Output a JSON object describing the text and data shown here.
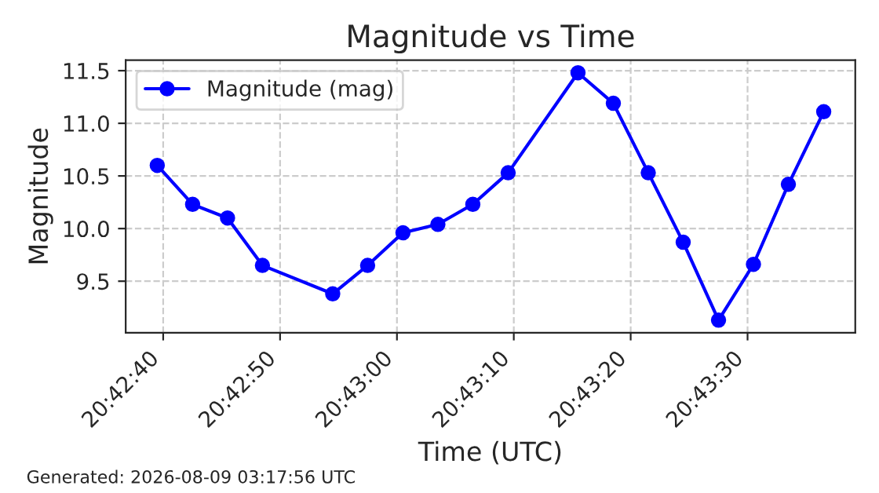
{
  "chart_data": {
    "type": "line",
    "title": "Magnitude vs Time",
    "xlabel": "Time (UTC)",
    "ylabel": "Magnitude",
    "x": [
      20.71097,
      20.71181,
      20.71264,
      20.71347,
      20.71514,
      20.71597,
      20.71681,
      20.71764,
      20.71847,
      20.71931,
      20.72097,
      20.72181,
      20.72264,
      20.72347,
      20.72431,
      20.72514,
      20.72597,
      20.72681
    ],
    "series": [
      {
        "name": "Magnitude (mag)",
        "color": "#0000ff",
        "values": [
          10.6,
          10.23,
          10.1,
          9.65,
          9.38,
          9.65,
          9.96,
          10.04,
          10.23,
          10.53,
          11.48,
          11.19,
          10.53,
          9.87,
          9.13,
          9.66,
          10.42,
          11.11
        ]
      }
    ],
    "xlim": [
      20.71022,
      20.72756
    ],
    "ylim": [
      9.01,
      11.6
    ],
    "xticks": [
      {
        "value": 20.711111,
        "label": "20:42:40"
      },
      {
        "value": 20.713889,
        "label": "20:42:50"
      },
      {
        "value": 20.716667,
        "label": "20:43:00"
      },
      {
        "value": 20.719444,
        "label": "20:43:10"
      },
      {
        "value": 20.722222,
        "label": "20:43:20"
      },
      {
        "value": 20.725,
        "label": "20:43:30"
      }
    ],
    "yticks": [
      9.5,
      {
        "value": 10,
        "label": "10.0"
      },
      10.5,
      {
        "value": 11,
        "label": "11.0"
      },
      11.5
    ],
    "grid": true,
    "legend": "top left",
    "marker": "circle",
    "line_style": "solid",
    "annotations": [
      "Generated: 2026-08-09 03:17:56 UTC"
    ]
  }
}
